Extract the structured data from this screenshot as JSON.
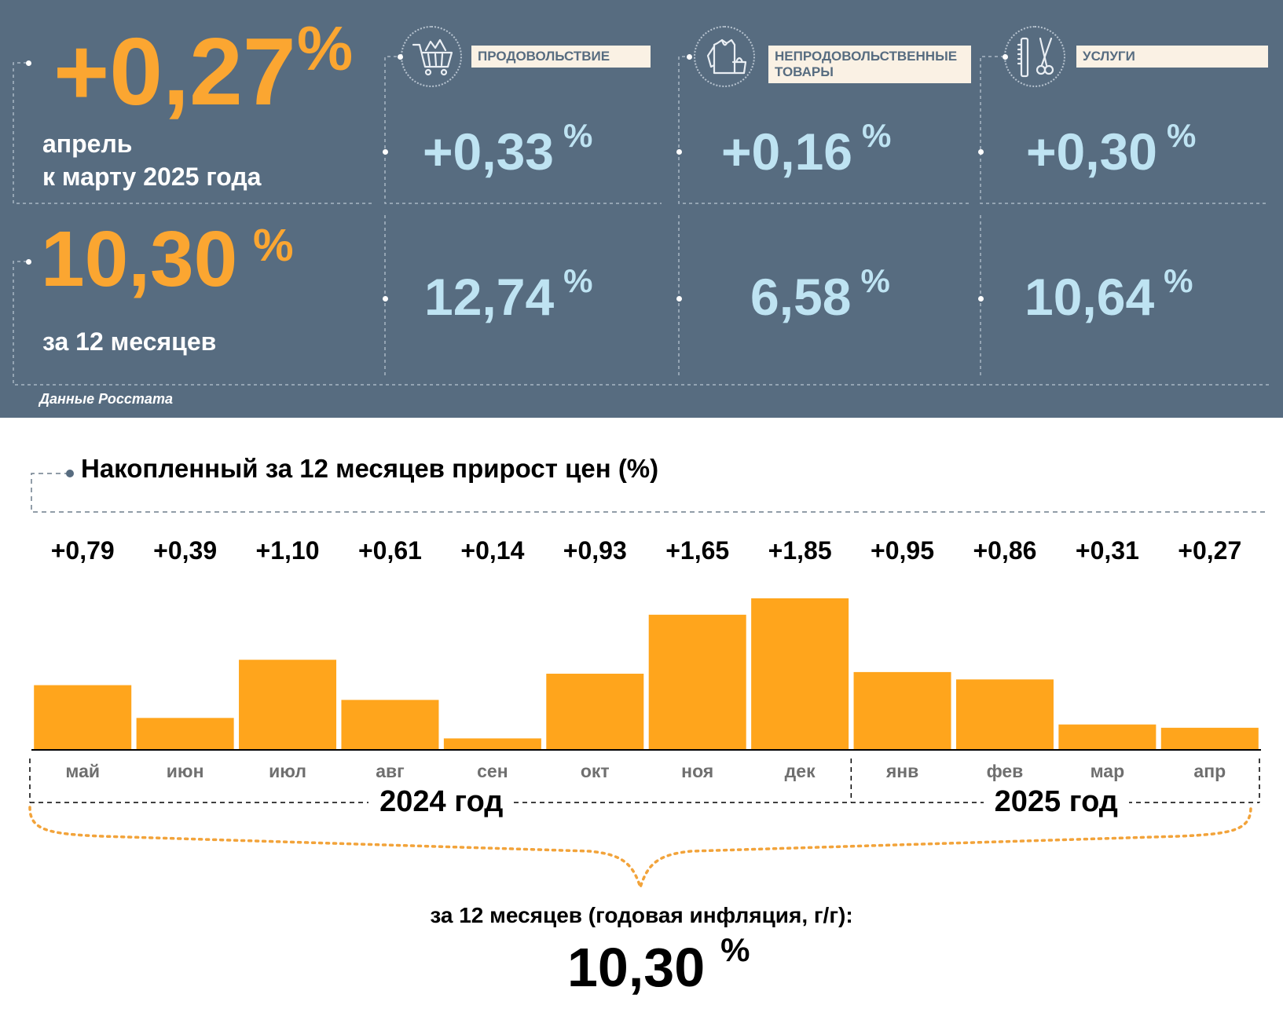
{
  "summary": {
    "monthly": {
      "value": "+0,27",
      "unit": "%",
      "caption_line1": "апрель",
      "caption_line2": "к марту 2025 года"
    },
    "yearly": {
      "value": "10,30",
      "unit": "%",
      "caption": "за 12 месяцев"
    },
    "source": "Данные Росстата"
  },
  "categories": [
    {
      "label": "ПРОДОВОЛЬСТВИЕ",
      "icon": "shopping-cart-icon",
      "monthly": "+0,33",
      "yearly": "12,74",
      "unit": "%"
    },
    {
      "label": "НЕПРОДОВОЛЬСТВЕННЫЕ ТОВАРЫ",
      "icon": "clothes-bag-icon",
      "monthly": "+0,16",
      "yearly": "6,58",
      "unit": "%"
    },
    {
      "label": "УСЛУГИ",
      "icon": "comb-scissors-icon",
      "monthly": "+0,30",
      "yearly": "10,64",
      "unit": "%"
    }
  ],
  "colors": {
    "panel": "#576c80",
    "accent_orange": "#fba631",
    "light_blue": "#bee3f2",
    "bar": "#ffa51c"
  },
  "chart_data": {
    "type": "bar",
    "title": "Накопленный за 12 месяцев прирост цен (%)",
    "categories": [
      "май",
      "июн",
      "июл",
      "авг",
      "сен",
      "окт",
      "ноя",
      "дек",
      "янв",
      "фев",
      "мар",
      "апр"
    ],
    "values": [
      0.79,
      0.39,
      1.1,
      0.61,
      0.14,
      0.93,
      1.65,
      1.85,
      0.95,
      0.86,
      0.31,
      0.27
    ],
    "value_labels": [
      "+0,79",
      "+0,39",
      "+1,10",
      "+0,61",
      "+0,14",
      "+0,93",
      "+1,65",
      "+1,85",
      "+0,95",
      "+0,86",
      "+0,31",
      "+0,27"
    ],
    "year_groups": [
      {
        "label": "2024 год",
        "months": 8
      },
      {
        "label": "2025 год",
        "months": 4
      }
    ],
    "xlabel": "",
    "ylabel": "",
    "ylim": [
      0,
      1.85
    ],
    "grid": false,
    "legend": "none",
    "total_caption": "за 12 месяцев (годовая инфляция, г/г):",
    "total_value": "10,30",
    "total_unit": "%"
  }
}
